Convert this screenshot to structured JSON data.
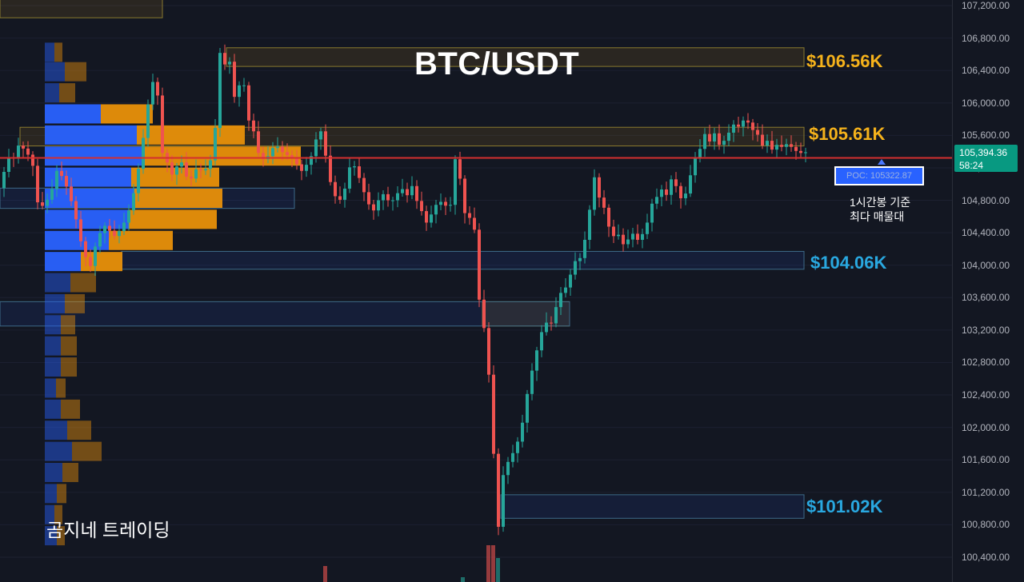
{
  "chart_data": {
    "type": "candlestick",
    "title": "BTC/USDT",
    "timeframe_note": [
      "1시간봉 기준",
      "최다 매물대"
    ],
    "ylim": [
      100200,
      107350
    ],
    "y_ticks": [
      "107,200.00",
      "106,800.00",
      "106,400.00",
      "106,000.00",
      "105,600.00",
      "105,200.00",
      "104,800.00",
      "104,400.00",
      "104,000.00",
      "103,600.00",
      "103,200.00",
      "102,800.00",
      "102,400.00",
      "102,000.00",
      "101,600.00",
      "101,200.00",
      "100,800.00",
      "100,400.00"
    ],
    "y_tick_values": [
      107200,
      106800,
      106400,
      106000,
      105600,
      105200,
      104800,
      104400,
      104000,
      103600,
      103200,
      102800,
      102400,
      102000,
      101600,
      101200,
      100800,
      100400
    ],
    "current_price": "105,394.36",
    "countdown": "58:24",
    "poc": {
      "label": "POC: 105322.87",
      "value": 105322.87
    },
    "levels": [
      {
        "label": "$106.56K",
        "value": 106560,
        "color": "#f5b21b"
      },
      {
        "label": "$105.61K",
        "value": 105610,
        "color": "#f5b21b"
      },
      {
        "label": "$104.06K",
        "value": 104060,
        "color": "#29a8e0"
      },
      {
        "label": "$101.02K",
        "value": 101020,
        "color": "#29a8e0"
      }
    ],
    "zones": [
      {
        "kind": "supply",
        "from": 106450,
        "to": 106680
      },
      {
        "kind": "supply",
        "from": 105470,
        "to": 105700
      },
      {
        "kind": "demand",
        "from": 103950,
        "to": 104170
      },
      {
        "kind": "supply",
        "from": 103250,
        "to": 103550
      },
      {
        "kind": "demand",
        "from": 103250,
        "to": 103550
      },
      {
        "kind": "demand",
        "from": 104700,
        "to": 104950
      },
      {
        "kind": "demand",
        "from": 100880,
        "to": 101170
      },
      {
        "kind": "supply",
        "from": 107050,
        "to": 107350
      }
    ],
    "volume_profile": [
      {
        "price": 106620,
        "buy": 12,
        "sell": 10
      },
      {
        "price": 106380,
        "buy": 25,
        "sell": 27
      },
      {
        "price": 106120,
        "buy": 18,
        "sell": 20
      },
      {
        "price": 105860,
        "buy": 70,
        "sell": 65
      },
      {
        "price": 105600,
        "buy": 115,
        "sell": 135
      },
      {
        "price": 105340,
        "buy": 125,
        "sell": 195
      },
      {
        "price": 105080,
        "buy": 108,
        "sell": 110
      },
      {
        "price": 104820,
        "buy": 112,
        "sell": 110
      },
      {
        "price": 104560,
        "buy": 105,
        "sell": 110
      },
      {
        "price": 104300,
        "buy": 80,
        "sell": 80
      },
      {
        "price": 104040,
        "buy": 45,
        "sell": 52
      },
      {
        "price": 103780,
        "buy": 32,
        "sell": 32
      },
      {
        "price": 103520,
        "buy": 25,
        "sell": 25
      },
      {
        "price": 103260,
        "buy": 20,
        "sell": 18
      },
      {
        "price": 103000,
        "buy": 20,
        "sell": 20
      },
      {
        "price": 102740,
        "buy": 20,
        "sell": 20
      },
      {
        "price": 102480,
        "buy": 14,
        "sell": 12
      },
      {
        "price": 102220,
        "buy": 20,
        "sell": 24
      },
      {
        "price": 101960,
        "buy": 28,
        "sell": 30
      },
      {
        "price": 101700,
        "buy": 34,
        "sell": 37
      },
      {
        "price": 101440,
        "buy": 22,
        "sell": 20
      },
      {
        "price": 101180,
        "buy": 15,
        "sell": 12
      },
      {
        "price": 100920,
        "buy": 12,
        "sell": 10
      },
      {
        "price": 100660,
        "buy": 15,
        "sell": 10
      }
    ],
    "waypoints": [
      [
        0,
        104950
      ],
      [
        6,
        105350
      ],
      [
        14,
        105300
      ],
      [
        22,
        105500
      ],
      [
        30,
        105400
      ],
      [
        38,
        105300
      ],
      [
        46,
        104700
      ],
      [
        54,
        104750
      ],
      [
        62,
        104900
      ],
      [
        70,
        105200
      ],
      [
        80,
        105000
      ],
      [
        90,
        104700
      ],
      [
        100,
        104250
      ],
      [
        110,
        103950
      ],
      [
        120,
        104350
      ],
      [
        130,
        104500
      ],
      [
        140,
        104350
      ],
      [
        150,
        104450
      ],
      [
        160,
        104700
      ],
      [
        168,
        105000
      ],
      [
        176,
        105500
      ],
      [
        184,
        106050
      ],
      [
        190,
        106300
      ],
      [
        196,
        106050
      ],
      [
        200,
        105400
      ],
      [
        206,
        105300
      ],
      [
        212,
        105100
      ],
      [
        218,
        105200
      ],
      [
        224,
        105300
      ],
      [
        230,
        105100
      ],
      [
        236,
        105050
      ],
      [
        244,
        105200
      ],
      [
        252,
        105150
      ],
      [
        260,
        105250
      ],
      [
        266,
        105500
      ],
      [
        272,
        106650
      ],
      [
        278,
        106450
      ],
      [
        284,
        106600
      ],
      [
        290,
        106050
      ],
      [
        296,
        106200
      ],
      [
        302,
        106300
      ],
      [
        308,
        105800
      ],
      [
        314,
        105700
      ],
      [
        320,
        105400
      ],
      [
        326,
        105300
      ],
      [
        334,
        105350
      ],
      [
        342,
        105500
      ],
      [
        350,
        105400
      ],
      [
        358,
        105350
      ],
      [
        366,
        105300
      ],
      [
        374,
        105150
      ],
      [
        382,
        105250
      ],
      [
        390,
        105400
      ],
      [
        396,
        105700
      ],
      [
        402,
        105600
      ],
      [
        408,
        105100
      ],
      [
        414,
        104950
      ],
      [
        420,
        104750
      ],
      [
        428,
        104900
      ],
      [
        436,
        105250
      ],
      [
        444,
        105200
      ],
      [
        450,
        104950
      ],
      [
        456,
        104850
      ],
      [
        462,
        104650
      ],
      [
        468,
        104700
      ],
      [
        474,
        104900
      ],
      [
        480,
        104850
      ],
      [
        486,
        104750
      ],
      [
        492,
        104850
      ],
      [
        500,
        104950
      ],
      [
        508,
        104850
      ],
      [
        514,
        105000
      ],
      [
        520,
        104750
      ],
      [
        526,
        104650
      ],
      [
        532,
        104500
      ],
      [
        538,
        104650
      ],
      [
        546,
        104800
      ],
      [
        554,
        104750
      ],
      [
        560,
        104650
      ],
      [
        568,
        105400
      ],
      [
        574,
        105000
      ],
      [
        578,
        104650
      ],
      [
        584,
        104600
      ],
      [
        590,
        104500
      ],
      [
        594,
        104250
      ],
      [
        598,
        103350
      ],
      [
        604,
        103200
      ],
      [
        608,
        102800
      ],
      [
        612,
        102200
      ],
      [
        616,
        101500
      ],
      [
        620,
        100600
      ],
      [
        624,
        101300
      ],
      [
        628,
        101450
      ],
      [
        634,
        101600
      ],
      [
        640,
        101700
      ],
      [
        646,
        101850
      ],
      [
        652,
        102100
      ],
      [
        656,
        102350
      ],
      [
        660,
        102600
      ],
      [
        666,
        102800
      ],
      [
        672,
        103100
      ],
      [
        680,
        103300
      ],
      [
        686,
        103250
      ],
      [
        692,
        103450
      ],
      [
        698,
        103650
      ],
      [
        704,
        103700
      ],
      [
        710,
        103850
      ],
      [
        716,
        104050
      ],
      [
        722,
        104050
      ],
      [
        730,
        104350
      ],
      [
        736,
        104750
      ],
      [
        742,
        105150
      ],
      [
        746,
        104850
      ],
      [
        752,
        104750
      ],
      [
        758,
        104500
      ],
      [
        764,
        104350
      ],
      [
        770,
        104400
      ],
      [
        776,
        104250
      ],
      [
        782,
        104300
      ],
      [
        788,
        104400
      ],
      [
        796,
        104300
      ],
      [
        802,
        104400
      ],
      [
        808,
        104550
      ],
      [
        814,
        104800
      ],
      [
        820,
        104850
      ],
      [
        826,
        104950
      ],
      [
        832,
        104850
      ],
      [
        838,
        105100
      ],
      [
        844,
        104950
      ],
      [
        850,
        104800
      ],
      [
        856,
        104900
      ],
      [
        862,
        105150
      ],
      [
        868,
        105350
      ],
      [
        874,
        105450
      ],
      [
        880,
        105650
      ],
      [
        886,
        105500
      ],
      [
        892,
        105650
      ],
      [
        898,
        105450
      ],
      [
        904,
        105550
      ],
      [
        910,
        105650
      ],
      [
        916,
        105750
      ],
      [
        922,
        105700
      ],
      [
        928,
        105800
      ],
      [
        934,
        105750
      ],
      [
        940,
        105650
      ],
      [
        946,
        105600
      ],
      [
        952,
        105450
      ],
      [
        958,
        105550
      ],
      [
        964,
        105400
      ],
      [
        970,
        105500
      ],
      [
        976,
        105450
      ],
      [
        982,
        105500
      ],
      [
        988,
        105450
      ],
      [
        994,
        105400
      ],
      [
        1000,
        105380
      ],
      [
        1006,
        105394
      ]
    ]
  },
  "colors": {
    "background": "#131722",
    "up": "#26a69a",
    "down": "#ef5350",
    "poc_line": "#d32f2f",
    "supply_fill": "rgba(245,178,27,0.10)",
    "supply_border": "#8a7a2e",
    "demand_fill": "rgba(41,98,255,0.10)",
    "demand_border": "#3d6a88",
    "profile_buy": "#2962ff",
    "profile_sell": "#e8900a"
  },
  "brand": "곰지네 트레이딩"
}
